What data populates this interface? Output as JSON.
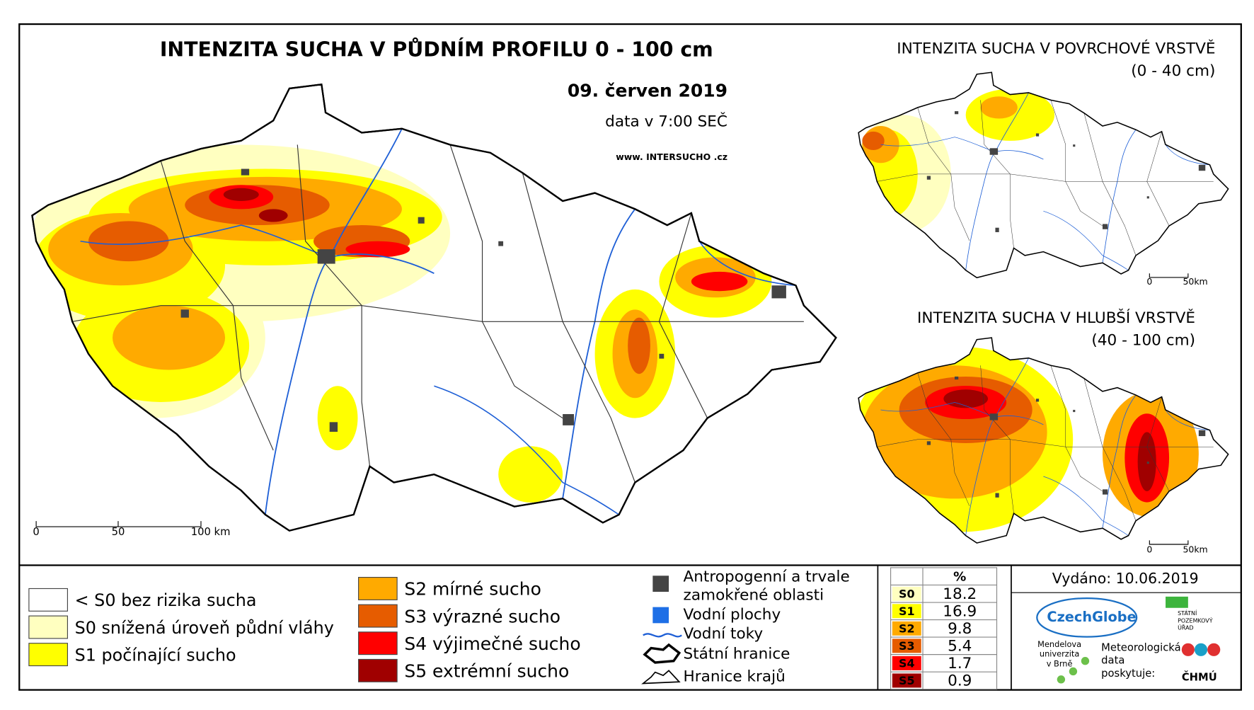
{
  "main_map": {
    "title": "INTENZITA SUCHA V PŮDNÍM PROFILU 0 - 100 cm",
    "date": "09. červen 2019",
    "time": "data v 7:00 SEČ",
    "website": "www. INTERSUCHO .cz",
    "scale_labels": [
      "0",
      "50",
      "100 km"
    ]
  },
  "inset_maps": [
    {
      "title": "INTENZITA SUCHA V POVRCHOVÉ VRSTVĚ",
      "depth": "(0 - 40 cm)",
      "scale_labels": [
        "0",
        "50km"
      ]
    },
    {
      "title": "INTENZITA SUCHA V HLUBŠÍ VRSTVĚ",
      "depth": "(40 - 100 cm)",
      "scale_labels": [
        "0",
        "50km"
      ]
    }
  ],
  "legend": {
    "drought_classes": [
      {
        "label": "< S0 bez rizika sucha",
        "color": "#ffffff"
      },
      {
        "label": "S0 snížená úroveň půdní vláhy",
        "color": "#ffffc0"
      },
      {
        "label": "S1 počínající sucho",
        "color": "#ffff00"
      },
      {
        "label": "S2 mírné sucho",
        "color": "#ffaa00"
      },
      {
        "label": "S3 výrazné sucho",
        "color": "#e65c00"
      },
      {
        "label": "S4 výjimečné sucho",
        "color": "#ff0000"
      },
      {
        "label": "S5 extrémní sucho",
        "color": "#a00000"
      }
    ],
    "other": [
      {
        "label": [
          "Antropogenní a trvale",
          "zamokřené oblasti"
        ]
      },
      {
        "label": [
          "Vodní plochy"
        ]
      },
      {
        "label": [
          "Vodní toky"
        ]
      },
      {
        "label": [
          "Státní hranice"
        ]
      },
      {
        "label": [
          "Hranice krajů"
        ]
      }
    ]
  },
  "stats": {
    "header": "%",
    "rows": [
      {
        "class": "S0",
        "value": 18.2,
        "color": "#ffffc0"
      },
      {
        "class": "S1",
        "value": 16.9,
        "color": "#ffff00"
      },
      {
        "class": "S2",
        "value": 9.8,
        "color": "#ffaa00"
      },
      {
        "class": "S3",
        "value": 5.4,
        "color": "#e65c00"
      },
      {
        "class": "S4",
        "value": 1.7,
        "color": "#ff0000"
      },
      {
        "class": "S5",
        "value": 0.9,
        "color": "#a00000"
      }
    ]
  },
  "issued": "Vydáno: 10.06.2019",
  "logos": {
    "czechglobe": "CzechGlobe",
    "spu": [
      "STÁTNÍ",
      "POZEMKOVÝ",
      "ÚŘAD"
    ],
    "mendelu": [
      "Mendelova",
      "univerzita",
      "v Brně"
    ],
    "chmi_note": [
      "Meteorologická",
      "data",
      "poskytuje:"
    ],
    "chmi": "ČHMÚ"
  }
}
